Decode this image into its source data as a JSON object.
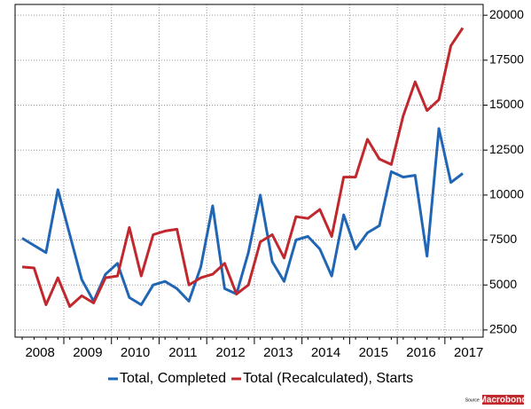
{
  "chart_data": {
    "type": "line",
    "x_labels": [
      "2008",
      "2009",
      "2010",
      "2011",
      "2012",
      "2013",
      "2014",
      "2015",
      "2016",
      "2017"
    ],
    "ylim": [
      2100,
      20600
    ],
    "yticks": [
      2500,
      5000,
      7500,
      10000,
      12500,
      15000,
      17500,
      20000
    ],
    "grid": true,
    "legend": "bottom",
    "series": [
      {
        "name": "Total, Completed",
        "color": "#2166b5",
        "values": [
          7600,
          7200,
          6800,
          10300,
          7800,
          5300,
          4100,
          5600,
          6200,
          4300,
          3900,
          5000,
          5200,
          4800,
          4100,
          6000,
          9400,
          4800,
          4500,
          6800,
          10000,
          6300,
          5200,
          7500,
          7700,
          7000,
          5500,
          8900,
          7000,
          7900,
          8300,
          11300,
          11000,
          11100,
          6600,
          13700,
          10700,
          11200
        ]
      },
      {
        "name": "Total (Recalculated), Starts",
        "color": "#c0282e",
        "values": [
          6000,
          5950,
          3900,
          5400,
          3800,
          4400,
          4000,
          5400,
          5500,
          8200,
          5500,
          7800,
          8000,
          8100,
          5000,
          5400,
          5600,
          6200,
          4500,
          5000,
          7400,
          7800,
          6500,
          8800,
          8700,
          9200,
          7700,
          11000,
          11000,
          13100,
          12000,
          11700,
          14400,
          16300,
          14700,
          15300,
          18300,
          19300
        ]
      }
    ],
    "source_label": "Source:",
    "source_name": "Macrobond"
  }
}
